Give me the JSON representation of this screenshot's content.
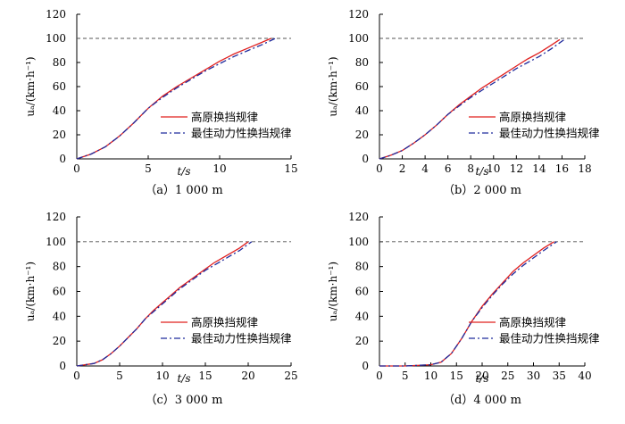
{
  "colors": {
    "series_gaoyuan": "#e0201f",
    "series_optimal": "#1f2a9c",
    "reference": "#555555",
    "axis": "#000000"
  },
  "chart_data": [
    {
      "type": "line",
      "caption": "（a）1 000 m",
      "xlabel": "t/s",
      "ylabel": "uₐ/(km·h⁻¹)",
      "xlim": [
        0,
        15
      ],
      "ylim": [
        0,
        120
      ],
      "xticks": [
        "0",
        "5",
        "10",
        "15"
      ],
      "yticks": [
        "0",
        "20",
        "40",
        "60",
        "80",
        "100",
        "120"
      ],
      "reference_y": 100,
      "legend": "center-right",
      "series": [
        {
          "name": "高原换挡规律",
          "color": "#e0201f",
          "dash": "solid",
          "x": [
            0,
            1,
            2,
            3,
            4,
            5,
            6,
            7,
            8,
            9,
            10,
            11,
            12,
            13,
            13.6
          ],
          "y": [
            0,
            4,
            10,
            19,
            30,
            42,
            52,
            60,
            67,
            74,
            81,
            87,
            92,
            97,
            100
          ]
        },
        {
          "name": "最佳动力性换挡规律",
          "color": "#1f2a9c",
          "dash": "dashdot",
          "x": [
            0,
            1,
            2,
            3,
            4,
            5,
            6,
            7,
            8,
            9,
            10,
            11,
            12,
            13,
            13.9
          ],
          "y": [
            0,
            4,
            10,
            19,
            30,
            42,
            51,
            59,
            66,
            73,
            79,
            85,
            90,
            95,
            100
          ]
        }
      ]
    },
    {
      "type": "line",
      "caption": "（b）2 000 m",
      "xlabel": "t/s",
      "ylabel": "uₐ/(km·h⁻¹)",
      "xlim": [
        0,
        18
      ],
      "ylim": [
        0,
        120
      ],
      "xticks": [
        "0",
        "2",
        "4",
        "6",
        "8",
        "10",
        "12",
        "14",
        "16",
        "18"
      ],
      "yticks": [
        "0",
        "20",
        "40",
        "60",
        "80",
        "100",
        "120"
      ],
      "reference_y": 100,
      "legend": "center-right",
      "series": [
        {
          "name": "高原换挡规律",
          "color": "#e0201f",
          "dash": "solid",
          "x": [
            0,
            1,
            2,
            3,
            4,
            5,
            6,
            7,
            8,
            9,
            10,
            11,
            12,
            13,
            14,
            15,
            15.8
          ],
          "y": [
            0,
            3,
            7,
            13,
            20,
            28,
            37,
            45,
            52,
            59,
            65,
            71,
            77,
            83,
            88,
            94,
            99
          ]
        },
        {
          "name": "最佳动力性换挡规律",
          "color": "#1f2a9c",
          "dash": "dashdot",
          "x": [
            0,
            1,
            2,
            3,
            4,
            5,
            6,
            7,
            8,
            9,
            10,
            11,
            12,
            13,
            14,
            15,
            16.2
          ],
          "y": [
            0,
            3,
            7,
            13,
            20,
            28,
            37,
            44,
            51,
            57,
            63,
            69,
            75,
            80,
            85,
            91,
            99
          ]
        }
      ]
    },
    {
      "type": "line",
      "caption": "（c）3 000 m",
      "xlabel": "t/s",
      "ylabel": "uₐ/(km·h⁻¹)",
      "xlim": [
        0,
        25
      ],
      "ylim": [
        0,
        120
      ],
      "xticks": [
        "0",
        "5",
        "10",
        "15",
        "20",
        "25"
      ],
      "yticks": [
        "0",
        "20",
        "40",
        "60",
        "80",
        "100",
        "120"
      ],
      "reference_y": 100,
      "legend": "bottom-right",
      "series": [
        {
          "name": "高原换挡规律",
          "color": "#e0201f",
          "dash": "solid",
          "x": [
            0,
            2,
            3,
            4,
            5,
            6,
            7,
            8,
            9,
            10,
            11,
            12,
            13,
            14,
            15,
            16,
            17,
            18,
            19,
            20
          ],
          "y": [
            0,
            2,
            5,
            10,
            16,
            23,
            30,
            38,
            45,
            51,
            57,
            63,
            68,
            73,
            78,
            83,
            87,
            91,
            95,
            100
          ]
        },
        {
          "name": "最佳动力性换挡规律",
          "color": "#1f2a9c",
          "dash": "dashdot",
          "x": [
            0,
            2,
            3,
            4,
            5,
            6,
            7,
            8,
            9,
            10,
            11,
            12,
            13,
            14,
            15,
            16,
            17,
            18,
            19,
            20.4
          ],
          "y": [
            0,
            2,
            5,
            10,
            16,
            23,
            30,
            38,
            44,
            50,
            56,
            62,
            67,
            72,
            77,
            81,
            85,
            89,
            93,
            100
          ]
        }
      ]
    },
    {
      "type": "line",
      "caption": "（d）4 000 m",
      "xlabel": "t/s",
      "ylabel": "uₐ/(km·h⁻¹)",
      "xlim": [
        0,
        40
      ],
      "ylim": [
        0,
        120
      ],
      "xticks": [
        "0",
        "5",
        "10",
        "15",
        "20",
        "25",
        "30",
        "35",
        "40"
      ],
      "yticks": [
        "0",
        "20",
        "40",
        "60",
        "80",
        "100",
        "120"
      ],
      "reference_y": 100,
      "legend": "bottom-right",
      "series": [
        {
          "name": "高原换挡规律",
          "color": "#e0201f",
          "dash": "solid",
          "x": [
            0,
            5,
            10,
            12,
            14,
            16,
            18,
            20,
            22,
            24,
            26,
            28,
            30,
            32,
            34
          ],
          "y": [
            0,
            0,
            1,
            3,
            10,
            22,
            36,
            48,
            58,
            67,
            76,
            83,
            89,
            95,
            100
          ]
        },
        {
          "name": "最佳动力性换挡规律",
          "color": "#1f2a9c",
          "dash": "dashdot",
          "x": [
            0,
            5,
            10,
            12,
            14,
            16,
            18,
            20,
            22,
            24,
            26,
            28,
            30,
            32,
            34.5
          ],
          "y": [
            0,
            0,
            1,
            3,
            10,
            22,
            36,
            47,
            57,
            66,
            74,
            81,
            87,
            93,
            100
          ]
        }
      ]
    }
  ]
}
